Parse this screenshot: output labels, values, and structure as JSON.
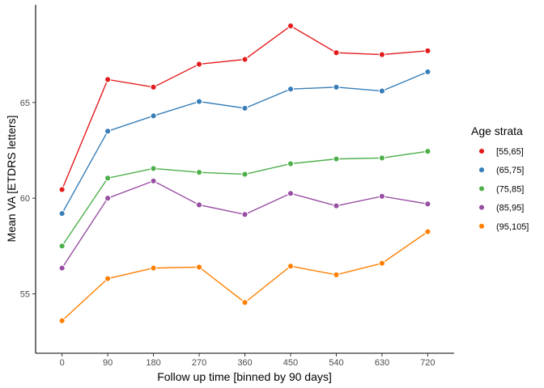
{
  "chart_data": {
    "type": "line",
    "xlabel": "Follow up time [binned by 90 days]",
    "ylabel": "Mean VA [ETDRS letters]",
    "x": [
      0,
      90,
      180,
      270,
      360,
      450,
      540,
      630,
      720
    ],
    "x_ticks": [
      "0",
      "90",
      "180",
      "270",
      "360",
      "450",
      "540",
      "630",
      "720"
    ],
    "y_ticks": [
      55,
      60,
      65
    ],
    "y_tick_labels": [
      "55",
      "60",
      "65"
    ],
    "xlim": [
      -52,
      772
    ],
    "ylim": [
      51.9,
      70.1
    ],
    "grid": false,
    "legend": {
      "title": "Age strata",
      "position": "right"
    },
    "series": [
      {
        "name": "[55,65]",
        "color": "#e41a1c",
        "values": [
          60.45,
          66.2,
          65.8,
          67.0,
          67.25,
          69.0,
          67.6,
          67.5,
          67.7
        ]
      },
      {
        "name": "(65,75]",
        "color": "#377eb8",
        "values": [
          59.2,
          63.5,
          64.3,
          65.05,
          64.7,
          65.7,
          65.8,
          65.6,
          66.6
        ]
      },
      {
        "name": "(75,85]",
        "color": "#4daf4a",
        "values": [
          57.5,
          61.05,
          61.55,
          61.35,
          61.25,
          61.8,
          62.05,
          62.1,
          62.45
        ]
      },
      {
        "name": "(85,95]",
        "color": "#984ea3",
        "values": [
          56.35,
          60.0,
          60.9,
          59.65,
          59.15,
          60.25,
          59.6,
          60.1,
          59.7
        ]
      },
      {
        "name": "(95,105]",
        "color": "#ff7f00",
        "values": [
          53.6,
          55.8,
          56.35,
          56.4,
          54.55,
          56.45,
          56.0,
          56.6,
          58.25
        ]
      }
    ]
  }
}
